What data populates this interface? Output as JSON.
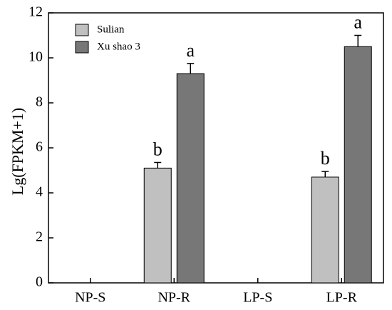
{
  "chart_data": {
    "type": "bar",
    "title": "",
    "xlabel": "",
    "ylabel": "Lg(FPKM+1)",
    "ylim": [
      0,
      12
    ],
    "yticks": [
      0,
      2,
      4,
      6,
      8,
      10,
      12
    ],
    "categories": [
      "NP-S",
      "NP-R",
      "LP-S",
      "LP-R"
    ],
    "series": [
      {
        "name": "Sulian",
        "color": "#c0c0c0",
        "values": [
          0,
          5.1,
          0,
          4.7
        ],
        "errors": [
          0,
          0.25,
          0,
          0.25
        ],
        "letters": [
          "",
          "b",
          "",
          "b"
        ]
      },
      {
        "name": "Xu shao 3",
        "color": "#777777",
        "values": [
          0,
          9.3,
          0,
          10.5
        ],
        "errors": [
          0,
          0.45,
          0,
          0.5
        ],
        "letters": [
          "",
          "a",
          "",
          "a"
        ]
      }
    ],
    "legend_position": "top-left",
    "grid": false
  }
}
